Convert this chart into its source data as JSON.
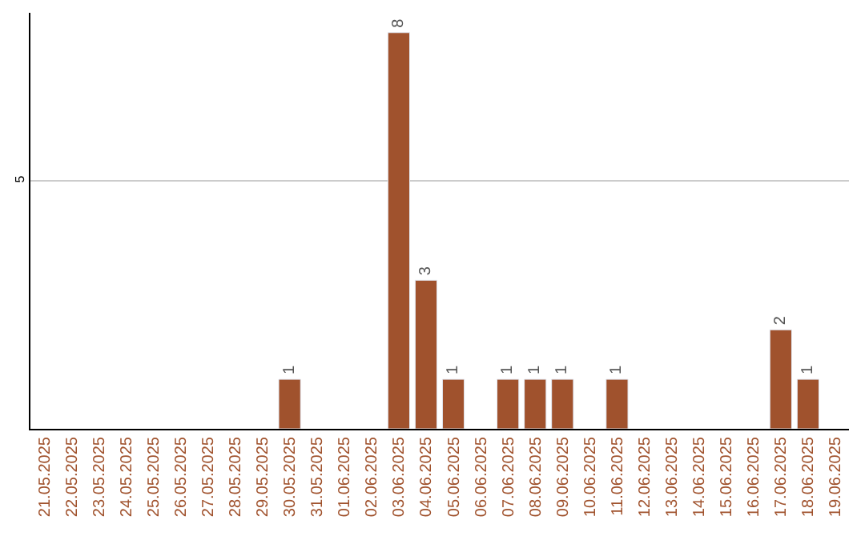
{
  "chart_data": {
    "type": "bar",
    "categories": [
      "21.05.2025",
      "22.05.2025",
      "23.05.2025",
      "24.05.2025",
      "25.05.2025",
      "26.05.2025",
      "27.05.2025",
      "28.05.2025",
      "29.05.2025",
      "30.05.2025",
      "31.05.2025",
      "01.06.2025",
      "02.06.2025",
      "03.06.2025",
      "04.06.2025",
      "05.06.2025",
      "06.06.2025",
      "07.06.2025",
      "08.06.2025",
      "09.06.2025",
      "10.06.2025",
      "11.06.2025",
      "12.06.2025",
      "13.06.2025",
      "14.06.2025",
      "15.06.2025",
      "16.06.2025",
      "17.06.2025",
      "18.06.2025",
      "19.06.2025"
    ],
    "values": [
      null,
      null,
      null,
      null,
      null,
      null,
      null,
      null,
      null,
      1,
      null,
      null,
      null,
      8,
      3,
      1,
      null,
      1,
      1,
      1,
      null,
      1,
      null,
      null,
      null,
      null,
      null,
      2,
      1,
      null
    ],
    "value_labels": [
      null,
      null,
      null,
      null,
      null,
      null,
      null,
      null,
      null,
      "1",
      null,
      null,
      null,
      "8",
      "3",
      "1",
      null,
      "1",
      "1",
      "1",
      null,
      "1",
      null,
      null,
      null,
      null,
      null,
      "2",
      "1",
      null
    ],
    "color": "#a0522d",
    "ylim": [
      0,
      8.4
    ],
    "yticks": [
      5
    ],
    "grid": "y"
  }
}
